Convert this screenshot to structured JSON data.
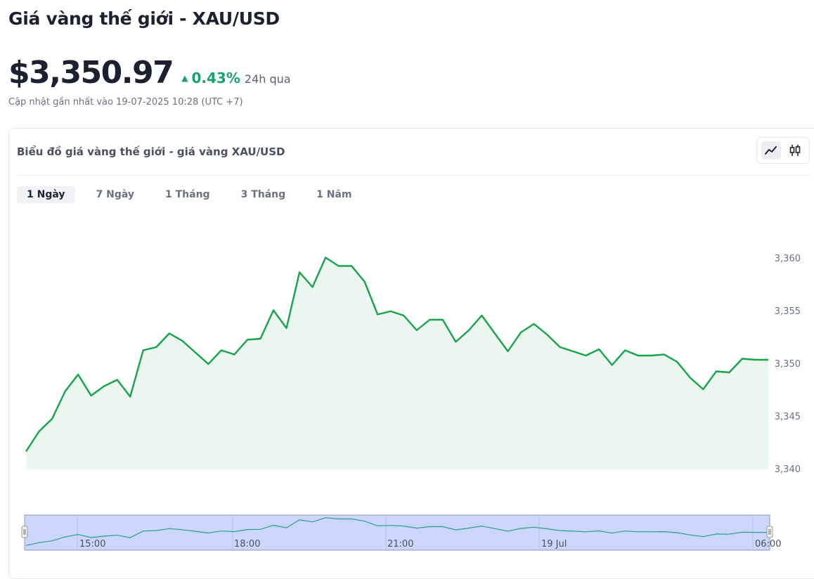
{
  "header": {
    "title": "Giá vàng thế giới - XAU/USD",
    "price": "$3,350.97",
    "change_pct": "0.43%",
    "change_period": "24h qua",
    "updated": "Cập nhật gần nhất vào 19-07-2025 10:28 (UTC +7)"
  },
  "chart_card": {
    "title": "Biểu đồ giá vàng thế giới - giá vàng XAU/USD",
    "chart_types": [
      "line-chart-icon",
      "candlestick-icon"
    ],
    "active_chart_type": "line-chart-icon",
    "tabs": [
      "1 Ngày",
      "7 Ngày",
      "1 Tháng",
      "3 Tháng",
      "1 Năm"
    ],
    "active_tab": "1 Ngày"
  },
  "colors": {
    "line": "#16a34a",
    "area": "#eaf6ef",
    "up": "#16a36b",
    "navigator_fill": "#ccd6fb"
  },
  "chart_data": {
    "type": "area",
    "title": "",
    "xlabel": "",
    "ylabel": "",
    "ylim": [
      3340,
      3360
    ],
    "y_ticks": [
      3340,
      3345,
      3350,
      3355,
      3360
    ],
    "y_tick_labels": [
      "3,340",
      "3,345",
      "3,350",
      "3,355",
      "3,360"
    ],
    "nav_ticks": [
      "15:00",
      "18:00",
      "21:00",
      "19 Jul",
      "06:00"
    ],
    "grid": false,
    "legend": "none",
    "series": [
      {
        "values": [
          3341.7,
          3343.6,
          3344.8,
          3347.4,
          3349.0,
          3347.0,
          3347.9,
          3348.5,
          3346.9,
          3351.3,
          3351.6,
          3352.9,
          3352.2,
          3351.1,
          3350.0,
          3351.3,
          3350.9,
          3352.3,
          3352.4,
          3355.1,
          3353.4,
          3358.7,
          3357.3,
          3360.1,
          3359.3,
          3359.3,
          3357.8,
          3354.7,
          3355.0,
          3354.6,
          3353.2,
          3354.2,
          3354.2,
          3352.1,
          3353.2,
          3354.6,
          3352.9,
          3351.2,
          3353.0,
          3353.8,
          3352.8,
          3351.6,
          3351.2,
          3350.8,
          3351.4,
          3349.9,
          3351.3,
          3350.8,
          3350.8,
          3350.9,
          3350.2,
          3348.7,
          3347.6,
          3349.3,
          3349.2,
          3350.5,
          3350.4,
          3350.4
        ]
      }
    ]
  }
}
